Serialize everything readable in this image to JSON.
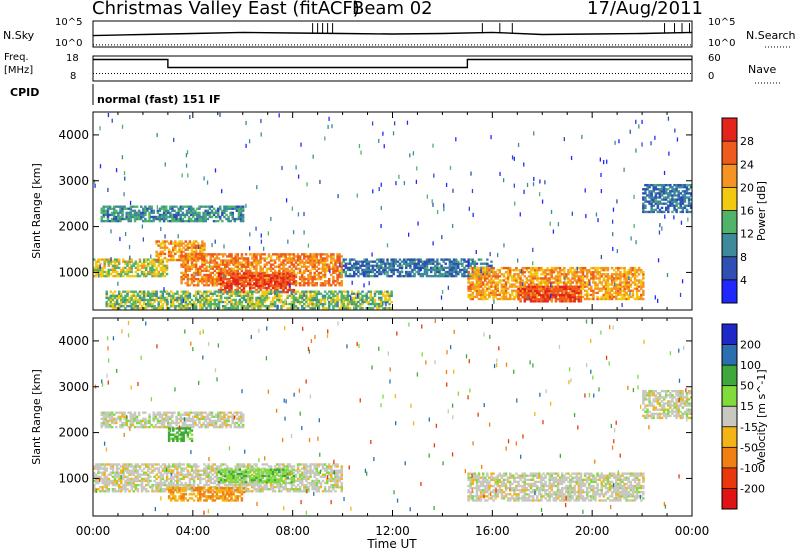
{
  "header": {
    "station": "Christmas Valley East (fitACF)",
    "beam": "Beam 02",
    "date": "17/Aug/2011"
  },
  "strip": {
    "nsky_label": "N.Sky",
    "nsky_ticks": [
      "10^5",
      "10^0"
    ],
    "nsearch_label": "N.Search",
    "freq_label": "Freq.",
    "freq_unit": "[MHz]",
    "freq_ticks": [
      "18",
      "8"
    ],
    "nave_label": "Nave",
    "nave_ticks": [
      "60",
      "0"
    ],
    "cpid_label": "CPID",
    "cpid_value": "normal (fast) 151 IF"
  },
  "panels": {
    "power": {
      "ylabel": "Slant Range [km]",
      "yticks": [
        "4000",
        "3000",
        "2000",
        "1000"
      ],
      "colorbar_label": "Power [dB]",
      "colorbar_ticks": [
        "28",
        "24",
        "20",
        "16",
        "12",
        "8",
        "4"
      ],
      "colors": [
        "#1e28ff",
        "#2f4fb5",
        "#3e8a9a",
        "#4fb36a",
        "#f2c811",
        "#f59422",
        "#ef5a1d",
        "#e3241c"
      ]
    },
    "velocity": {
      "ylabel": "Slant Range [km]",
      "yticks": [
        "4000",
        "3000",
        "2000",
        "1000"
      ],
      "colorbar_label": "Velocity [m s^-1]",
      "colorbar_ticks": [
        "200",
        "100",
        "50",
        "15",
        "-15",
        "-50",
        "-100",
        "-200"
      ],
      "colors": [
        "#1e28c8",
        "#2c6fb0",
        "#3ea83a",
        "#7fdc3a",
        "#c8c8c0",
        "#f5b416",
        "#f07f14",
        "#e8380c",
        "#e01414"
      ]
    }
  },
  "xaxis": {
    "label": "Time UT",
    "ticks": [
      "00:00",
      "04:00",
      "08:00",
      "12:00",
      "16:00",
      "20:00",
      "00:00"
    ]
  },
  "chart_data": [
    {
      "type": "line",
      "title": "N.Sky / N.Search",
      "ylim_log10": [
        0,
        5
      ],
      "series": [
        {
          "name": "N.Sky",
          "x_hours": [
            0,
            2,
            4,
            6,
            8,
            10,
            12,
            14,
            16,
            18,
            20,
            22,
            24
          ],
          "log10_values": [
            2.2,
            2.4,
            2.6,
            2.8,
            2.7,
            2.6,
            2.5,
            2.6,
            2.8,
            2.4,
            2.5,
            2.6,
            2.8
          ]
        },
        {
          "name": "N.Search",
          "x_hours": [
            0,
            24
          ],
          "log10_values": [
            0.4,
            0.4
          ]
        }
      ]
    },
    {
      "type": "line",
      "title": "Freq. / Nave",
      "series": [
        {
          "name": "Freq. [MHz]",
          "x_hours": [
            0,
            3.0,
            3.0,
            15.0,
            15.0,
            24
          ],
          "values": [
            16.3,
            16.3,
            12.5,
            12.5,
            16.3,
            16.3
          ]
        },
        {
          "name": "Nave",
          "x_hours": [
            0,
            24
          ],
          "values": [
            18,
            18
          ]
        }
      ]
    },
    {
      "type": "heatmap",
      "title": "Power [dB]",
      "xlabel": "Time UT",
      "ylabel": "Slant Range [km]",
      "xlim_hours": [
        0,
        24
      ],
      "ylim_km": [
        180,
        4500
      ],
      "zlim": [
        0,
        30
      ],
      "regions": [
        {
          "t0": 0.3,
          "t1": 6.0,
          "r0": 2100,
          "r1": 2450,
          "power": 10
        },
        {
          "t0": 0.0,
          "t1": 3.0,
          "r0": 900,
          "r1": 1300,
          "power": 16
        },
        {
          "t0": 2.5,
          "t1": 4.5,
          "r0": 1250,
          "r1": 1700,
          "power": 20
        },
        {
          "t0": 3.5,
          "t1": 10.0,
          "r0": 700,
          "r1": 1400,
          "power": 22
        },
        {
          "t0": 5.0,
          "t1": 8.0,
          "r0": 550,
          "r1": 1000,
          "power": 26
        },
        {
          "t0": 0.5,
          "t1": 12.0,
          "r0": 200,
          "r1": 600,
          "power": 14
        },
        {
          "t0": 10.0,
          "t1": 16.0,
          "r0": 900,
          "r1": 1300,
          "power": 8
        },
        {
          "t0": 15.0,
          "t1": 22.0,
          "r0": 400,
          "r1": 1100,
          "power": 20
        },
        {
          "t0": 17.0,
          "t1": 19.5,
          "r0": 350,
          "r1": 700,
          "power": 26
        },
        {
          "t0": 22.0,
          "t1": 24.0,
          "r0": 2300,
          "r1": 2900,
          "power": 8
        }
      ]
    },
    {
      "type": "heatmap",
      "title": "Velocity [m s^-1]",
      "xlabel": "Time UT",
      "ylabel": "Slant Range [km]",
      "xlim_hours": [
        0,
        24
      ],
      "ylim_km": [
        180,
        4500
      ],
      "zlim": [
        -250,
        250
      ],
      "regions": [
        {
          "t0": 0.3,
          "t1": 6.0,
          "r0": 2100,
          "r1": 2450,
          "velocity": 0
        },
        {
          "t0": 3.0,
          "t1": 4.0,
          "r0": 1800,
          "r1": 2100,
          "velocity": 60
        },
        {
          "t0": 0.0,
          "t1": 10.0,
          "r0": 700,
          "r1": 1300,
          "velocity": 0
        },
        {
          "t0": 5.0,
          "t1": 8.0,
          "r0": 900,
          "r1": 1200,
          "velocity": 40
        },
        {
          "t0": 3.0,
          "t1": 6.0,
          "r0": 500,
          "r1": 800,
          "velocity": -50
        },
        {
          "t0": 15.0,
          "t1": 22.0,
          "r0": 500,
          "r1": 1100,
          "velocity": 0
        },
        {
          "t0": 22.0,
          "t1": 24.0,
          "r0": 2300,
          "r1": 2900,
          "velocity": 0
        }
      ]
    }
  ]
}
